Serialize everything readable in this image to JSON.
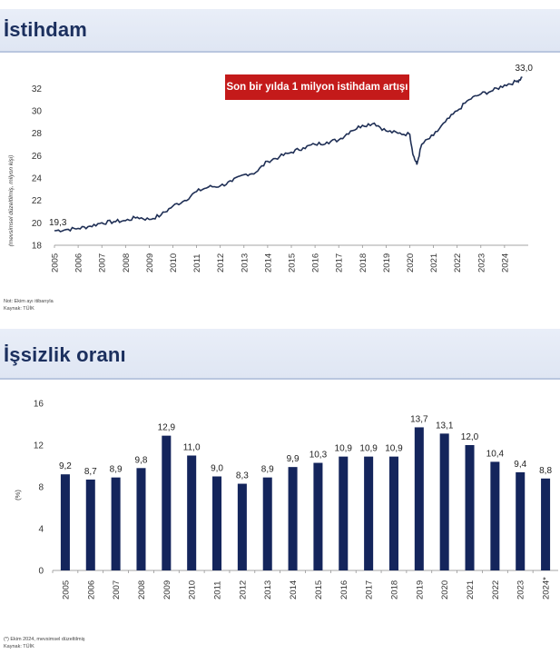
{
  "section1": {
    "title": "İstihdam",
    "callout": "Son bir yılda 1 milyon istihdam artışı",
    "ylabel": "(mevsimsel düzeltilmiş, milyon kişi)",
    "start_label": "19,3",
    "end_label": "33,0",
    "note": "Not: Ekim ayı itibarıyla",
    "source": "Kaynak: TÜİK"
  },
  "section2": {
    "title": "İşsizlik oranı",
    "ylabel": "(%)",
    "note": "(*) Ekim 2024, mevsimsel düzeltilmiş",
    "source": "Kaynak: TÜİK"
  },
  "colors": {
    "line": "#1f2f55",
    "bar": "#14255c",
    "header_text": "#1b2f5e",
    "callout_bg": "#c41a1a"
  },
  "chart_data": [
    {
      "type": "line",
      "title": "İstihdam",
      "ylabel": "(mevsimsel düzeltilmiş, milyon kişi)",
      "ylim": [
        18,
        33
      ],
      "yticks": [
        18,
        20,
        22,
        24,
        26,
        28,
        30,
        32
      ],
      "xticks": [
        "2005",
        "2006",
        "2007",
        "2008",
        "2009",
        "2010",
        "2011",
        "2012",
        "2013",
        "2014",
        "2015",
        "2016",
        "2017",
        "2018",
        "2019",
        "2020",
        "2021",
        "2022",
        "2023",
        "2024"
      ],
      "x": [
        2005.0,
        2005.5,
        2006.0,
        2006.5,
        2007.0,
        2007.5,
        2008.0,
        2008.5,
        2009.0,
        2009.5,
        2010.0,
        2010.5,
        2011.0,
        2011.5,
        2012.0,
        2012.5,
        2013.0,
        2013.5,
        2014.0,
        2014.5,
        2015.0,
        2015.5,
        2016.0,
        2016.5,
        2017.0,
        2017.5,
        2018.0,
        2018.5,
        2019.0,
        2019.5,
        2020.0,
        2020.15,
        2020.3,
        2020.5,
        2021.0,
        2021.5,
        2022.0,
        2022.5,
        2023.0,
        2023.5,
        2024.0,
        2024.5,
        2024.75
      ],
      "y": [
        19.3,
        19.4,
        19.5,
        19.7,
        20.0,
        20.1,
        20.2,
        20.5,
        20.3,
        20.7,
        21.5,
        22.0,
        22.8,
        23.2,
        23.3,
        23.7,
        24.3,
        24.5,
        25.5,
        25.9,
        26.3,
        26.7,
        27.0,
        27.2,
        27.4,
        28.2,
        28.7,
        28.9,
        28.2,
        28.0,
        27.9,
        26.0,
        25.2,
        27.0,
        27.8,
        29.0,
        30.0,
        31.0,
        31.5,
        31.8,
        32.3,
        32.6,
        33.0
      ],
      "annotations": [
        {
          "text": "19,3",
          "x": 2005.0,
          "y": 19.3
        },
        {
          "text": "33,0",
          "x": 2024.75,
          "y": 33.0
        }
      ],
      "grid": false
    },
    {
      "type": "bar",
      "title": "İşsizlik oranı",
      "ylabel": "(%)",
      "ylim": [
        0,
        16
      ],
      "yticks": [
        0,
        4,
        8,
        12,
        16
      ],
      "categories": [
        "2005",
        "2006",
        "2007",
        "2008",
        "2009",
        "2010",
        "2011",
        "2012",
        "2013",
        "2014",
        "2015",
        "2016",
        "2017",
        "2018",
        "2019",
        "2020",
        "2021",
        "2022",
        "2023",
        "2024*"
      ],
      "values": [
        9.2,
        8.7,
        8.9,
        9.8,
        12.9,
        11.0,
        9.0,
        8.3,
        8.9,
        9.9,
        10.3,
        10.9,
        10.9,
        10.9,
        13.7,
        13.1,
        12.0,
        10.4,
        9.4,
        8.8
      ],
      "labels": [
        "9,2",
        "8,7",
        "8,9",
        "9,8",
        "12,9",
        "11,0",
        "9,0",
        "8,3",
        "8,9",
        "9,9",
        "10,3",
        "10,9",
        "10,9",
        "10,9",
        "13,7",
        "13,1",
        "12,0",
        "10,4",
        "9,4",
        "8,8"
      ],
      "grid": false
    }
  ]
}
